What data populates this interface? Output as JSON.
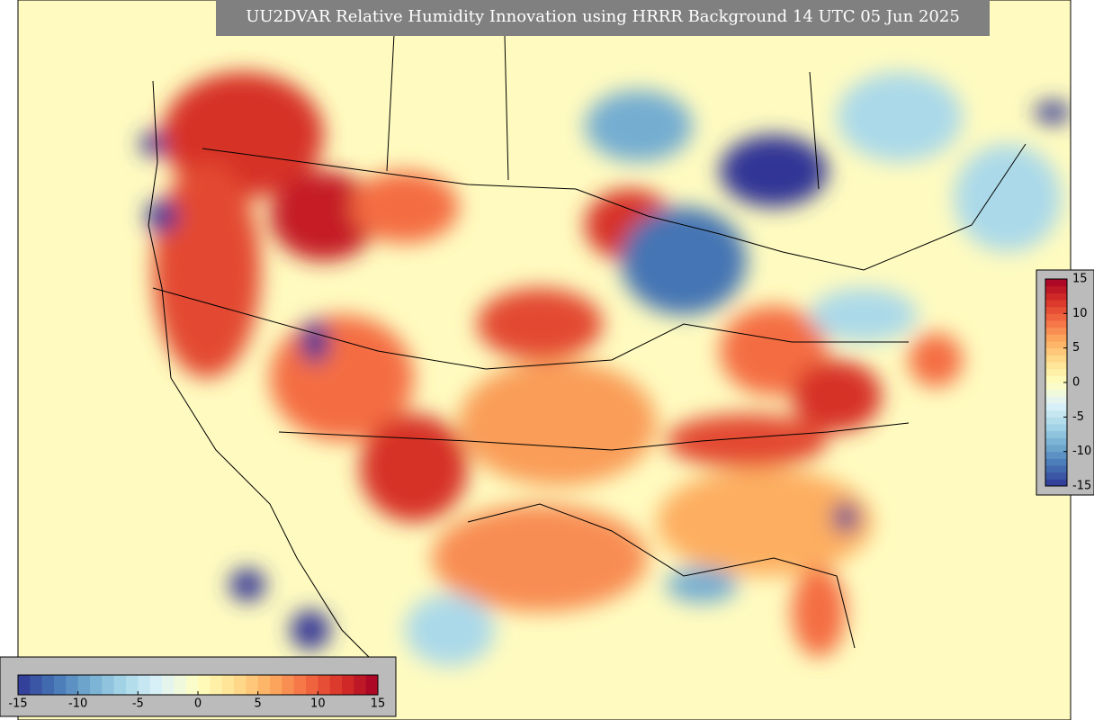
{
  "title": "UU2DVAR Relative Humidity Innovation using HRRR Background 14 UTC 05 Jun 2025",
  "colorbar_horizontal": {
    "vlim": [
      -15,
      15
    ],
    "ticks": [
      -15,
      -10,
      -5,
      0,
      5,
      10,
      15
    ]
  },
  "colorbar_vertical": {
    "vlim": [
      -15,
      15
    ],
    "ticks": [
      15,
      10,
      5,
      0,
      -5,
      -10,
      -15
    ]
  }
}
